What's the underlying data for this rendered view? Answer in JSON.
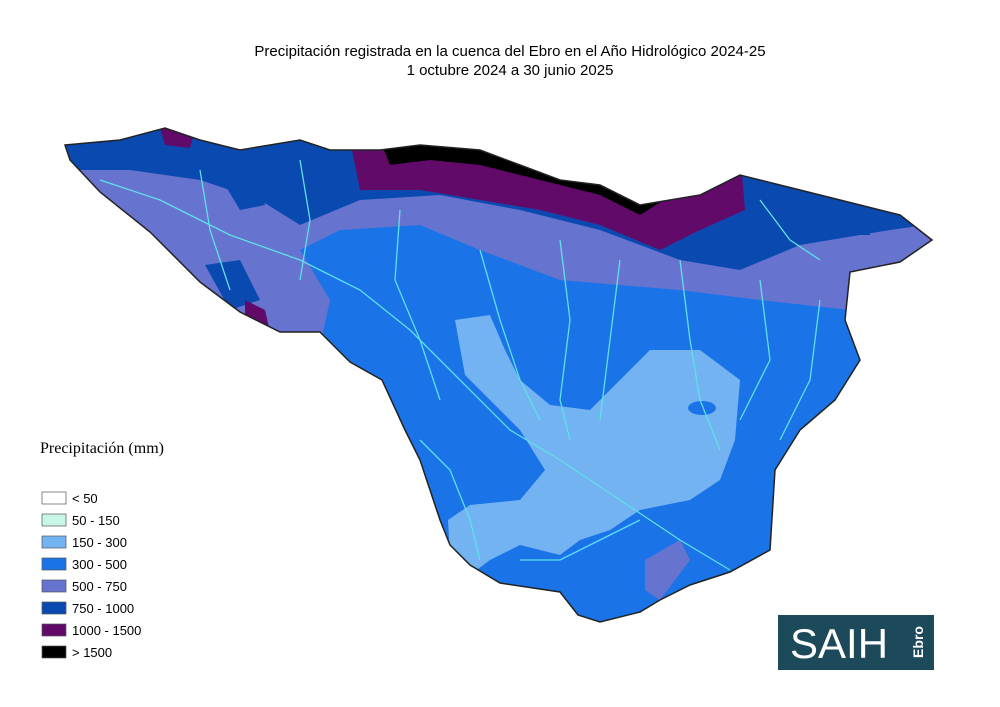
{
  "title": "Precipitación registrada en la cuenca del Ebro en el Año Hidrológico 2024-25",
  "subtitle": "1 octubre 2024 a 30 junio 2025",
  "legend": {
    "title": "Precipitación (mm)",
    "items": [
      {
        "label": "< 50",
        "color": "#ffffff"
      },
      {
        "label": "50 - 150",
        "color": "#c8f5e6"
      },
      {
        "label": "150 - 300",
        "color": "#74b3f2"
      },
      {
        "label": "300 - 500",
        "color": "#1a74e8"
      },
      {
        "label": "500 - 750",
        "color": "#6674d0"
      },
      {
        "label": "750 - 1000",
        "color": "#0a4ab0"
      },
      {
        "label": "1000 - 1500",
        "color": "#620a6a"
      },
      {
        "label": "> 1500",
        "color": "#000000"
      }
    ]
  },
  "logo": {
    "text": "SAIH",
    "subtext": "Ebro"
  }
}
